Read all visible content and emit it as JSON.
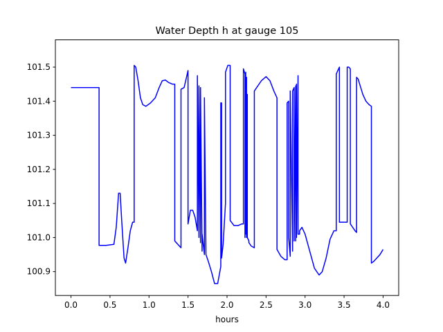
{
  "chart_data": {
    "type": "line",
    "title": "Water Depth h at gauge 105",
    "xlabel": "hours",
    "ylabel": "",
    "xlim": [
      -0.2,
      4.2
    ],
    "ylim": [
      100.83,
      101.58
    ],
    "xticks": [
      0.0,
      0.5,
      1.0,
      1.5,
      2.0,
      2.5,
      3.0,
      3.5,
      4.0
    ],
    "xtick_labels": [
      "0.0",
      "0.5",
      "1.0",
      "1.5",
      "2.0",
      "2.5",
      "3.0",
      "3.5",
      "4.0"
    ],
    "yticks": [
      100.9,
      101.0,
      101.1,
      101.2,
      101.3,
      101.4,
      101.5
    ],
    "ytick_labels": [
      "100.9",
      "101.0",
      "101.1",
      "101.2",
      "101.3",
      "101.4",
      "101.5"
    ],
    "grid": false,
    "series": [
      {
        "color": "#0000ff",
        "x": [
          0.0,
          0.36,
          0.36,
          0.45,
          0.55,
          0.58,
          0.61,
          0.63,
          0.65,
          0.68,
          0.7,
          0.73,
          0.76,
          0.79,
          0.81,
          0.81,
          0.83,
          0.86,
          0.89,
          0.92,
          0.96,
          1.02,
          1.08,
          1.13,
          1.17,
          1.21,
          1.25,
          1.3,
          1.33,
          1.33,
          1.41,
          1.41,
          1.45,
          1.47,
          1.5,
          1.5,
          1.53,
          1.56,
          1.59,
          1.62,
          1.62,
          1.64,
          1.64,
          1.66,
          1.66,
          1.68,
          1.68,
          1.71,
          1.71,
          1.73,
          1.73,
          1.76,
          1.8,
          1.84,
          1.88,
          1.9,
          1.92,
          1.92,
          1.93,
          1.93,
          1.95,
          1.98,
          1.98,
          2.01,
          2.04,
          2.04,
          2.09,
          2.14,
          2.19,
          2.21,
          2.21,
          2.23,
          2.23,
          2.24,
          2.24,
          2.25,
          2.25,
          2.26,
          2.26,
          2.28,
          2.28,
          2.31,
          2.35,
          2.35,
          2.38,
          2.44,
          2.5,
          2.55,
          2.6,
          2.64,
          2.64,
          2.69,
          2.74,
          2.77,
          2.77,
          2.79,
          2.79,
          2.81,
          2.81,
          2.84,
          2.84,
          2.86,
          2.86,
          2.88,
          2.88,
          2.89,
          2.89,
          2.91,
          2.91,
          2.93,
          2.93,
          2.96,
          3.0,
          3.06,
          3.12,
          3.18,
          3.22,
          3.27,
          3.32,
          3.37,
          3.4,
          3.4,
          3.42,
          3.44,
          3.44,
          3.54,
          3.54,
          3.56,
          3.58,
          3.58,
          3.64,
          3.66,
          3.66,
          3.68,
          3.7,
          3.74,
          3.78,
          3.82,
          3.85,
          3.85,
          3.88,
          3.92,
          3.96,
          4.0
        ],
        "y": [
          101.44,
          101.44,
          100.977,
          100.977,
          100.98,
          101.03,
          101.13,
          101.13,
          101.05,
          100.94,
          100.925,
          100.97,
          101.02,
          101.045,
          101.045,
          101.505,
          101.5,
          101.46,
          101.41,
          101.39,
          101.385,
          101.395,
          101.41,
          101.44,
          101.46,
          101.462,
          101.455,
          101.45,
          101.45,
          100.99,
          100.97,
          101.435,
          101.44,
          101.46,
          101.49,
          101.04,
          101.08,
          101.08,
          101.06,
          101.02,
          101.475,
          101.0,
          101.445,
          100.985,
          101.44,
          100.96,
          101.01,
          100.95,
          101.41,
          100.95,
          100.95,
          100.93,
          100.9,
          100.865,
          100.865,
          100.89,
          100.915,
          101.395,
          101.395,
          100.94,
          100.98,
          101.1,
          101.485,
          101.505,
          101.505,
          101.05,
          101.035,
          101.035,
          101.04,
          101.04,
          101.495,
          101.48,
          101.0,
          101.485,
          101.01,
          101.47,
          101.0,
          101.42,
          101.0,
          100.99,
          100.985,
          100.975,
          100.97,
          101.43,
          101.44,
          101.46,
          101.472,
          101.46,
          101.43,
          101.41,
          100.965,
          100.945,
          100.935,
          100.935,
          101.395,
          101.4,
          101.0,
          100.945,
          101.43,
          100.96,
          101.43,
          101.44,
          100.99,
          101.445,
          100.99,
          101.45,
          101.0,
          101.475,
          101.01,
          101.01,
          101.02,
          101.03,
          101.01,
          100.96,
          100.91,
          100.89,
          100.9,
          100.94,
          100.995,
          101.02,
          101.02,
          101.48,
          101.49,
          101.5,
          101.045,
          101.045,
          101.5,
          101.5,
          101.495,
          101.04,
          101.02,
          101.015,
          101.47,
          101.465,
          101.45,
          101.42,
          101.4,
          101.39,
          101.385,
          100.925,
          100.93,
          100.94,
          100.95,
          100.965
        ]
      }
    ]
  }
}
